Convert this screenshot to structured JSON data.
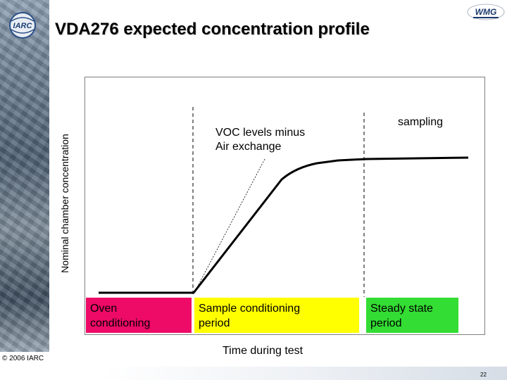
{
  "slide": {
    "title": "VDA276 expected concentration profile",
    "copyright": "© 2006 IARC",
    "page_number": "22",
    "logos": {
      "left": "IARC",
      "right": "WMG"
    }
  },
  "diagram": {
    "y_axis_label": "Nominal chamber concentration",
    "x_axis_label": "Time during test",
    "annotations": {
      "voc": {
        "line1": "VOC levels minus",
        "line2": "Air exchange"
      },
      "sampling": "sampling"
    },
    "phases": [
      {
        "line1": "Oven",
        "line2": "conditioning",
        "color": "#ee0a67"
      },
      {
        "line1": "Sample conditioning",
        "line2": "period",
        "color": "#ffff00"
      },
      {
        "line1": "Steady state",
        "line2": "period",
        "color": "#33dd33"
      }
    ]
  }
}
